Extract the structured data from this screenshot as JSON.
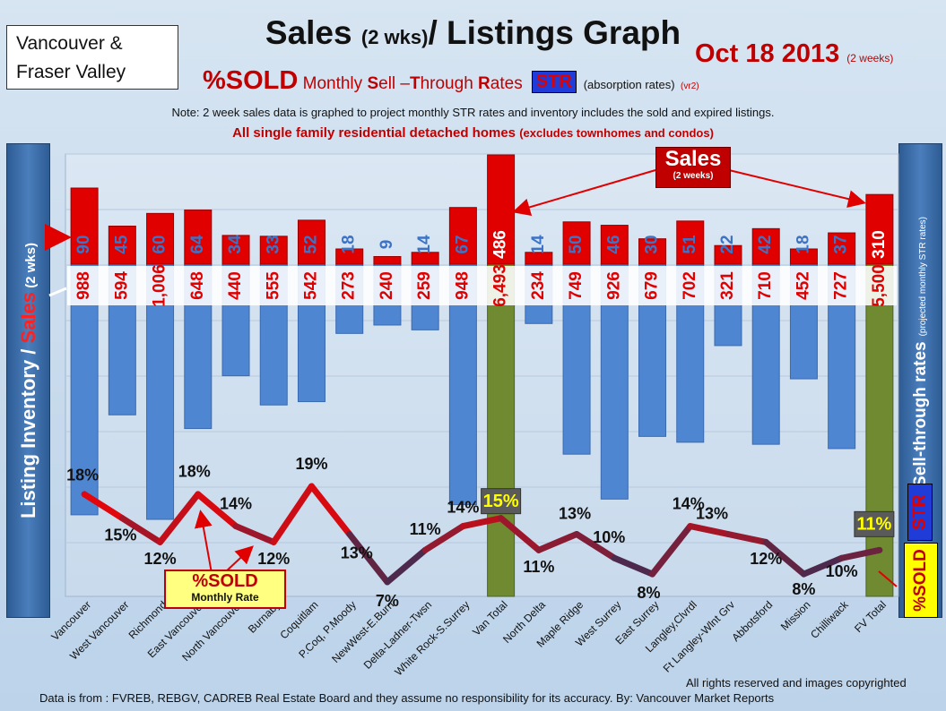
{
  "header": {
    "region_line1": "Vancouver &",
    "region_line2": "Fraser Valley",
    "title_a": "Sales ",
    "title_b": "(2 wks)",
    "title_c": "/ Listings Graph",
    "date": "Oct 18 2013",
    "date_note": "(2 weeks)",
    "subtitle_sold": "%SOLD",
    "subtitle_a": " Monthly ",
    "subtitle_s": "S",
    "subtitle_b": "ell –",
    "subtitle_t": "T",
    "subtitle_c": "hrough ",
    "subtitle_r": "R",
    "subtitle_d": "ates",
    "str_badge": "STR",
    "absorption": "(absorption rates)",
    "version": "(vr2)",
    "note": "Note: 2 week sales data is graphed to project monthly STR rates and inventory includes the sold and expired listings.",
    "note2_main": "All single family residential detached homes ",
    "note2_sub": "(excludes townhomes and condos)"
  },
  "side_labels": {
    "left_a": "Listing Inventory / ",
    "left_b": "Sales",
    "left_c": " (2 wks)",
    "right_main": "Sell-through rates",
    "right_sub": "(projected monthly STR rates)",
    "str_badge": "STR",
    "sold_badge": "%SOLD"
  },
  "callouts": {
    "sold_label_1": "%SOLD",
    "sold_label_2": "Monthly Rate",
    "sales_label_1": "Sales",
    "sales_label_2": "(2 weeks)"
  },
  "footer": {
    "rights": "All rights reserved and  images copyrighted",
    "source": "Data is from : FVREB, REBGV, CADREB Real Estate Board and they assume no responsibility  for its accuracy. By: Vancouver Market Reports"
  },
  "chart_data": {
    "type": "bar",
    "categories": [
      "Vancouver",
      "West Vancouver",
      "Richmond",
      "East Vancouver",
      "North Vancouver",
      "Burnaby",
      "Coquitlam",
      "P.Coq, P.Moody",
      "NewWest-E.Burn",
      "Delta-Ladner-Twsn",
      "White Rock-S.Surrey",
      "Van Total",
      "North Delta",
      "Maple Ridge",
      "West Surrey",
      "East Surrey",
      "Langley,Clvrdl",
      "Ft Langley-Wlnt Grv",
      "Abbotsford",
      "Mission",
      "Chilliwack",
      "FV Total"
    ],
    "series": [
      {
        "values": [
          988,
          594,
          1006,
          648,
          440,
          555,
          542,
          273,
          240,
          259,
          948,
          6493,
          234,
          749,
          926,
          679,
          702,
          321,
          710,
          452,
          727,
          5500
        ],
        "labels": [
          "988",
          "594",
          "1,006",
          "648",
          "440",
          "555",
          "542",
          "273",
          "240",
          "259",
          "948",
          "6,493",
          "234",
          "749",
          "926",
          "679",
          "702",
          "321",
          "710",
          "452",
          "727",
          "5,500"
        ]
      },
      {
        "values": [
          90,
          45,
          60,
          64,
          34,
          33,
          52,
          18,
          9,
          14,
          67,
          486,
          14,
          50,
          46,
          30,
          51,
          22,
          42,
          18,
          37,
          310
        ]
      },
      {
        "values": [
          18,
          15,
          12,
          18,
          14,
          12,
          19,
          13,
          7,
          11,
          14,
          15,
          11,
          13,
          10,
          8,
          14,
          13,
          12,
          8,
          10,
          11
        ]
      }
    ],
    "total_indices": [
      11,
      21
    ],
    "colors": {
      "listings": "#4f86d2",
      "totals": "#6f8a30",
      "sales": "#e00000",
      "line_high": "#ff0000",
      "line_low": "#26335e"
    }
  }
}
